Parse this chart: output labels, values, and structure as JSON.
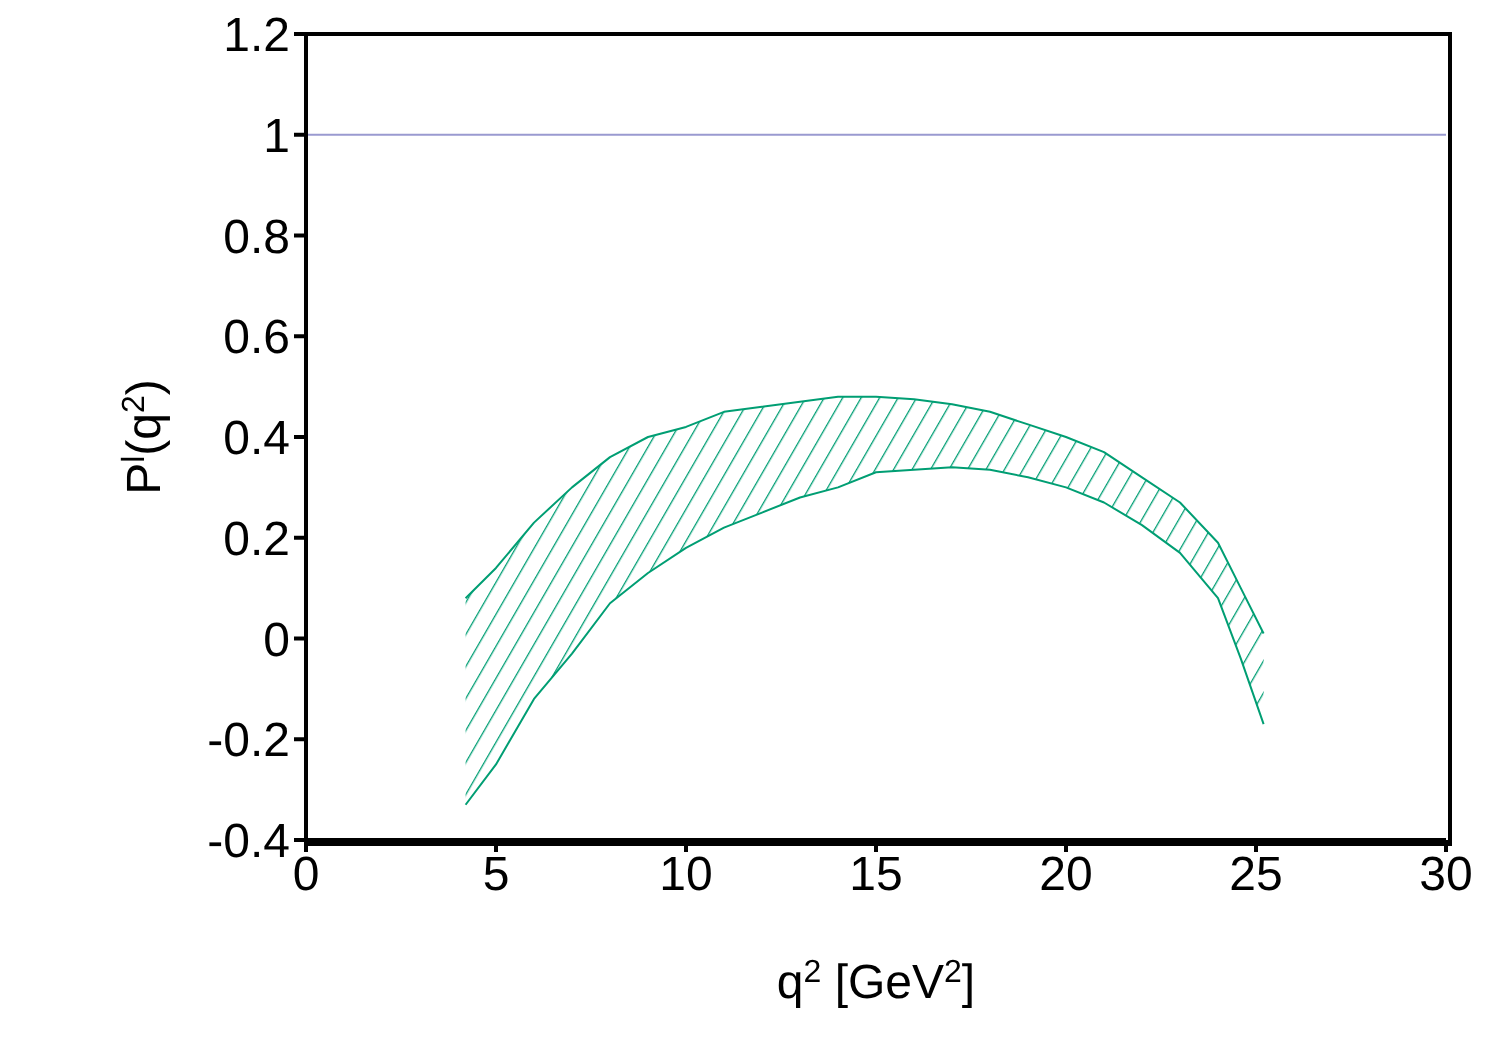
{
  "chart_data": {
    "type": "line",
    "xlabel": "q$^{2}$ [GeV$^{2}$]",
    "ylabel": "P$^{l}$(q$^{2}$)",
    "xlim": [
      0,
      30
    ],
    "xticks": [
      0,
      5,
      10,
      15,
      20,
      25,
      30
    ],
    "ylim": [
      -0.4,
      1.2
    ],
    "yticks": [
      -0.4,
      -0.2,
      0,
      0.2,
      0.4,
      0.6,
      0.8,
      1,
      1.2
    ],
    "marker": "none",
    "ref_lines": [
      {
        "axis": "y",
        "value": 1,
        "color": "#9a9ad0"
      }
    ],
    "series": [
      {
        "color": "#009e73",
        "x": [
          4.2,
          5,
          6,
          7,
          8,
          9,
          10,
          11,
          12,
          13,
          14,
          15,
          16,
          17,
          18,
          19,
          20,
          21,
          22,
          23,
          24,
          24.6,
          25.2
        ],
        "values": [
          0.08,
          0.14,
          0.23,
          0.3,
          0.36,
          0.4,
          0.42,
          0.45,
          0.46,
          0.47,
          0.48,
          0.48,
          0.475,
          0.465,
          0.45,
          0.425,
          0.4,
          0.37,
          0.32,
          0.27,
          0.19,
          0.1,
          0.01
        ]
      },
      {
        "color": "#009e73",
        "x": [
          4.2,
          5,
          6,
          7,
          8,
          9,
          10,
          11,
          12,
          13,
          14,
          15,
          16,
          17,
          18,
          19,
          20,
          21,
          22,
          23,
          24,
          24.6,
          25.2
        ],
        "values": [
          -0.33,
          -0.25,
          -0.12,
          -0.03,
          0.07,
          0.13,
          0.18,
          0.22,
          0.25,
          0.28,
          0.3,
          0.33,
          0.335,
          0.34,
          0.335,
          0.32,
          0.3,
          0.27,
          0.225,
          0.17,
          0.08,
          -0.04,
          -0.17
        ]
      }
    ]
  }
}
